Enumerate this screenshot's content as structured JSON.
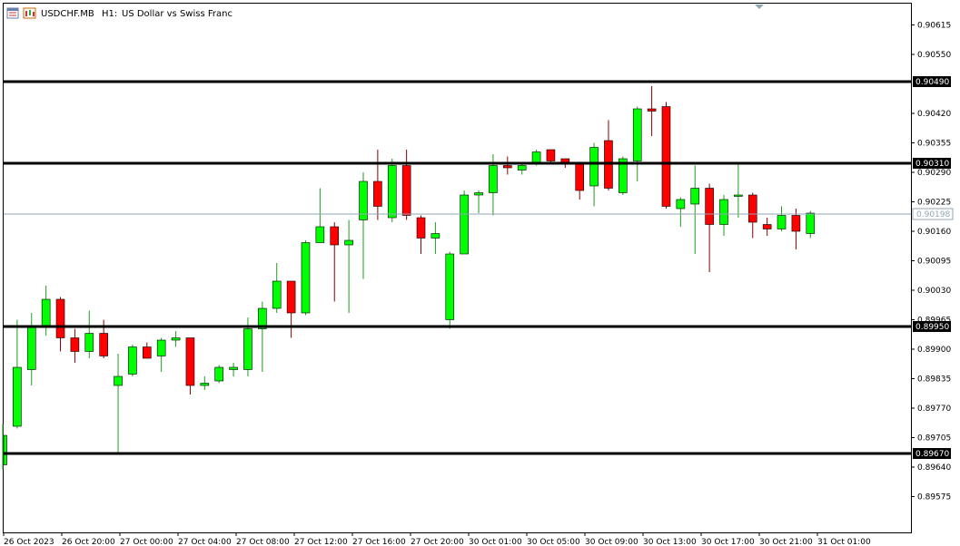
{
  "header": {
    "symbol": "USDCHF.MB",
    "timeframe": "H1:",
    "description": "US Dollar vs Swiss Franc"
  },
  "colors": {
    "bull": "#00ff00",
    "bear": "#ff0000",
    "wick_bull": "#1aa01a",
    "wick_bear": "#8a0000",
    "level_line": "#000000",
    "bid_line": "#8fa6b5"
  },
  "chart_data": {
    "type": "candlestick",
    "ylim": [
      0.8954,
      0.907
    ],
    "y_ticks": [
      "0.90615",
      "0.90550",
      "0.90420",
      "0.90355",
      "0.90290",
      "0.90225",
      "0.90160",
      "0.90095",
      "0.90030",
      "0.89965",
      "0.89900",
      "0.89835",
      "0.89770",
      "0.89705",
      "0.89640",
      "0.89575"
    ],
    "x_labels": [
      "26 Oct 2023",
      "26 Oct 20:00",
      "27 Oct 00:00",
      "27 Oct 04:00",
      "27 Oct 08:00",
      "27 Oct 12:00",
      "27 Oct 16:00",
      "27 Oct 20:00",
      "30 Oct 01:00",
      "30 Oct 05:00",
      "30 Oct 09:00",
      "30 Oct 13:00",
      "30 Oct 17:00",
      "30 Oct 21:00",
      "31 Oct 01:00"
    ],
    "levels": [
      "0.90490",
      "0.90310",
      "0.89950",
      "0.89670"
    ],
    "bid_price": "0.90198",
    "candles": [
      [
        0.89645,
        0.89735,
        0.89635,
        0.8971
      ],
      [
        0.8973,
        0.89965,
        0.89725,
        0.8986
      ],
      [
        0.89855,
        0.8998,
        0.8982,
        0.8995
      ],
      [
        0.8995,
        0.9004,
        0.8993,
        0.9001
      ],
      [
        0.9001,
        0.90015,
        0.89895,
        0.89925
      ],
      [
        0.89925,
        0.89945,
        0.8987,
        0.89895
      ],
      [
        0.89895,
        0.89985,
        0.8988,
        0.89935
      ],
      [
        0.89935,
        0.89965,
        0.8988,
        0.89885
      ],
      [
        0.8982,
        0.8989,
        0.8967,
        0.8984
      ],
      [
        0.89845,
        0.8991,
        0.8984,
        0.89905
      ],
      [
        0.89905,
        0.89915,
        0.8988,
        0.8988
      ],
      [
        0.89885,
        0.89925,
        0.8985,
        0.8992
      ],
      [
        0.8992,
        0.8994,
        0.89905,
        0.89925
      ],
      [
        0.89925,
        0.89925,
        0.898,
        0.8982
      ],
      [
        0.8982,
        0.8984,
        0.8981,
        0.89825
      ],
      [
        0.8983,
        0.89865,
        0.89825,
        0.8986
      ],
      [
        0.89855,
        0.8987,
        0.8984,
        0.8986
      ],
      [
        0.89855,
        0.8997,
        0.8984,
        0.89945
      ],
      [
        0.89945,
        0.90005,
        0.8985,
        0.8999
      ],
      [
        0.8999,
        0.9009,
        0.8998,
        0.9005
      ],
      [
        0.9005,
        0.9005,
        0.89925,
        0.8998
      ],
      [
        0.8998,
        0.9014,
        0.89975,
        0.90135
      ],
      [
        0.90135,
        0.90255,
        0.90135,
        0.9017
      ],
      [
        0.9017,
        0.9018,
        0.90005,
        0.9013
      ],
      [
        0.9013,
        0.90185,
        0.8998,
        0.9014
      ],
      [
        0.90185,
        0.9029,
        0.90055,
        0.9027
      ],
      [
        0.9027,
        0.9034,
        0.90185,
        0.90215
      ],
      [
        0.9019,
        0.9032,
        0.9018,
        0.90305
      ],
      [
        0.90305,
        0.9034,
        0.90185,
        0.90195
      ],
      [
        0.9019,
        0.90195,
        0.9011,
        0.90145
      ],
      [
        0.90145,
        0.9018,
        0.9011,
        0.90155
      ],
      [
        0.89965,
        0.90115,
        0.89945,
        0.9011
      ],
      [
        0.9011,
        0.9025,
        0.9011,
        0.9024
      ],
      [
        0.9024,
        0.9025,
        0.902,
        0.90245
      ],
      [
        0.90245,
        0.9033,
        0.90195,
        0.90305
      ],
      [
        0.90305,
        0.90325,
        0.90285,
        0.903
      ],
      [
        0.90295,
        0.9031,
        0.90285,
        0.90305
      ],
      [
        0.9031,
        0.9034,
        0.90305,
        0.90335
      ],
      [
        0.9034,
        0.9034,
        0.9031,
        0.90315
      ],
      [
        0.9032,
        0.9032,
        0.903,
        0.9031
      ],
      [
        0.9031,
        0.9031,
        0.9023,
        0.9025
      ],
      [
        0.9026,
        0.90355,
        0.90215,
        0.90345
      ],
      [
        0.9036,
        0.90405,
        0.9025,
        0.90255
      ],
      [
        0.90245,
        0.90325,
        0.9024,
        0.9032
      ],
      [
        0.90315,
        0.90435,
        0.9027,
        0.9043
      ],
      [
        0.9043,
        0.9048,
        0.9037,
        0.90425
      ],
      [
        0.90435,
        0.90445,
        0.9021,
        0.90215
      ],
      [
        0.9021,
        0.90235,
        0.9017,
        0.9023
      ],
      [
        0.9022,
        0.90305,
        0.9011,
        0.90255
      ],
      [
        0.90255,
        0.90265,
        0.9007,
        0.90175
      ],
      [
        0.90175,
        0.9024,
        0.9015,
        0.9023
      ],
      [
        0.9024,
        0.9031,
        0.9019,
        0.9024
      ],
      [
        0.9024,
        0.90245,
        0.90145,
        0.9018
      ],
      [
        0.90175,
        0.9019,
        0.9015,
        0.90165
      ],
      [
        0.90165,
        0.90215,
        0.9016,
        0.90195
      ],
      [
        0.90195,
        0.9021,
        0.9012,
        0.9016
      ],
      [
        0.90155,
        0.90205,
        0.90145,
        0.902
      ]
    ]
  }
}
